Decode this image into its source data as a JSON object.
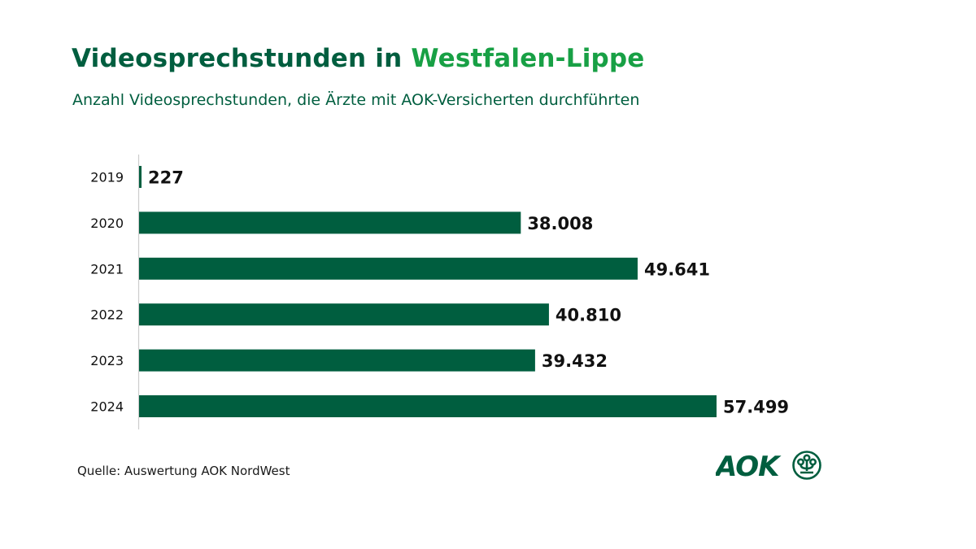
{
  "header": {
    "title_part1": "Videosprechstunden in ",
    "title_part2": "Westfalen-Lippe",
    "subtitle": "Anzahl Videosprechstunden, die Ärzte mit AOK-Versicherten durchführten"
  },
  "footer": {
    "source": "Quelle: Auswertung AOK NordWest",
    "logo_text": "AOK"
  },
  "colors": {
    "bar": "#005e3f",
    "title_dark": "#005e3f",
    "title_accent": "#18a045",
    "axis": "#cccccc",
    "label": "#111111"
  },
  "chart_data": {
    "type": "bar",
    "orientation": "horizontal",
    "title": "Videosprechstunden in Westfalen-Lippe",
    "subtitle": "Anzahl Videosprechstunden, die Ärzte mit AOK-Versicherten durchführten",
    "categories": [
      "2019",
      "2020",
      "2021",
      "2022",
      "2023",
      "2024"
    ],
    "values": [
      227,
      38008,
      49641,
      40810,
      39432,
      57499
    ],
    "value_labels": [
      "227",
      "38.008",
      "49.641",
      "40.810",
      "39.432",
      "57.499"
    ],
    "xlabel": "",
    "ylabel": "",
    "xlim": [
      0,
      57499
    ],
    "grid": false,
    "legend": "none"
  }
}
